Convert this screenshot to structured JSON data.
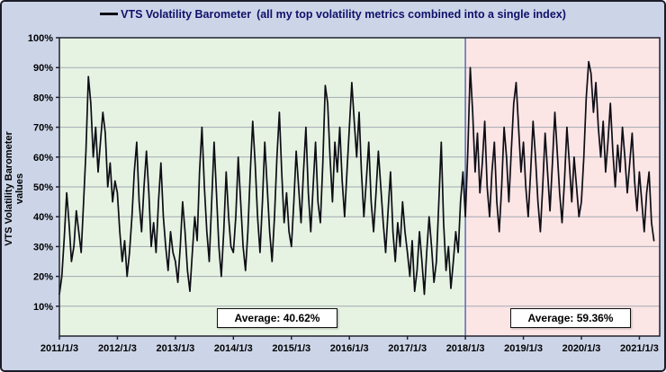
{
  "chart_data": {
    "type": "line",
    "legend": {
      "title": "VTS Volatility Barometer",
      "note": "(all my top volatility metrics combined into a single index)"
    },
    "ylabel": "VTS Volatility Barometer values",
    "ylim": [
      0,
      100
    ],
    "xlim": [
      0,
      10.35
    ],
    "grid": true,
    "colors": {
      "frame_background": "#ccd5e8",
      "plot_border": "#22222e",
      "grid": "#a3a9b4",
      "legend_text": "#10106a"
    },
    "y_ticks": [
      {
        "label": "10%",
        "value": 10
      },
      {
        "label": "20%",
        "value": 20
      },
      {
        "label": "30%",
        "value": 30
      },
      {
        "label": "40%",
        "value": 40
      },
      {
        "label": "50%",
        "value": 50
      },
      {
        "label": "60%",
        "value": 60
      },
      {
        "label": "70%",
        "value": 70
      },
      {
        "label": "80%",
        "value": 80
      },
      {
        "label": "90%",
        "value": 90
      },
      {
        "label": "100%",
        "value": 100
      }
    ],
    "x_ticks": [
      {
        "label": "2011/1/3",
        "value": 0
      },
      {
        "label": "2012/1/3",
        "value": 1
      },
      {
        "label": "2013/1/3",
        "value": 2
      },
      {
        "label": "2014/1/3",
        "value": 3
      },
      {
        "label": "2015/1/3",
        "value": 4
      },
      {
        "label": "2016/1/3",
        "value": 5
      },
      {
        "label": "2017/1/3",
        "value": 6
      },
      {
        "label": "2018/1/3",
        "value": 7
      },
      {
        "label": "2019/1/3",
        "value": 8
      },
      {
        "label": "2020/1/3",
        "value": 9
      },
      {
        "label": "2021/1/3",
        "value": 10
      }
    ],
    "regions": [
      {
        "from": 0,
        "to": 7,
        "color": "#e6f3e2",
        "average": 40.62,
        "average_label": "Average:  40.62%"
      },
      {
        "from": 7,
        "to": 10.35,
        "color": "#fbe5e5",
        "average": 59.36,
        "average_label": "Average:  59.36%"
      }
    ],
    "divider": {
      "x": 7,
      "color": "#5a6cb0"
    },
    "series": [
      {
        "name": "VTS Volatility Barometer",
        "color": "#0d0d15",
        "x_start": 0,
        "x_step": 0.0416667,
        "values": [
          14,
          20,
          33,
          48,
          38,
          25,
          30,
          42,
          35,
          28,
          45,
          62,
          87,
          78,
          60,
          70,
          55,
          65,
          75,
          68,
          50,
          58,
          45,
          52,
          48,
          35,
          25,
          32,
          20,
          28,
          40,
          55,
          65,
          45,
          35,
          50,
          62,
          48,
          30,
          38,
          28,
          45,
          58,
          40,
          30,
          22,
          35,
          28,
          25,
          18,
          30,
          45,
          35,
          22,
          15,
          28,
          40,
          32,
          55,
          70,
          50,
          35,
          25,
          45,
          65,
          48,
          30,
          20,
          35,
          55,
          40,
          30,
          28,
          40,
          60,
          45,
          30,
          22,
          35,
          55,
          72,
          58,
          40,
          28,
          45,
          65,
          50,
          35,
          25,
          40,
          60,
          75,
          55,
          38,
          48,
          35,
          30,
          45,
          62,
          50,
          38,
          55,
          70,
          48,
          35,
          50,
          65,
          45,
          38,
          58,
          84,
          78,
          60,
          45,
          65,
          55,
          70,
          52,
          40,
          55,
          70,
          85,
          72,
          60,
          75,
          55,
          40,
          52,
          65,
          45,
          35,
          48,
          62,
          50,
          38,
          28,
          42,
          55,
          35,
          25,
          38,
          30,
          45,
          35,
          28,
          20,
          32,
          15,
          22,
          35,
          25,
          14,
          28,
          40,
          30,
          18,
          25,
          45,
          65,
          38,
          22,
          30,
          16,
          25,
          35,
          28,
          45,
          55,
          40,
          62,
          90,
          75,
          55,
          68,
          48,
          58,
          72,
          50,
          40,
          55,
          65,
          45,
          35,
          50,
          70,
          60,
          45,
          62,
          78,
          85,
          70,
          55,
          65,
          50,
          40,
          55,
          72,
          60,
          45,
          35,
          50,
          68,
          55,
          42,
          58,
          75,
          62,
          48,
          38,
          52,
          70,
          58,
          45,
          60,
          50,
          40,
          45,
          60,
          80,
          92,
          88,
          75,
          85,
          70,
          60,
          72,
          55,
          65,
          78,
          62,
          50,
          64,
          55,
          70,
          60,
          48,
          58,
          68,
          52,
          42,
          55,
          45,
          35,
          48,
          55,
          38,
          32
        ]
      }
    ]
  }
}
